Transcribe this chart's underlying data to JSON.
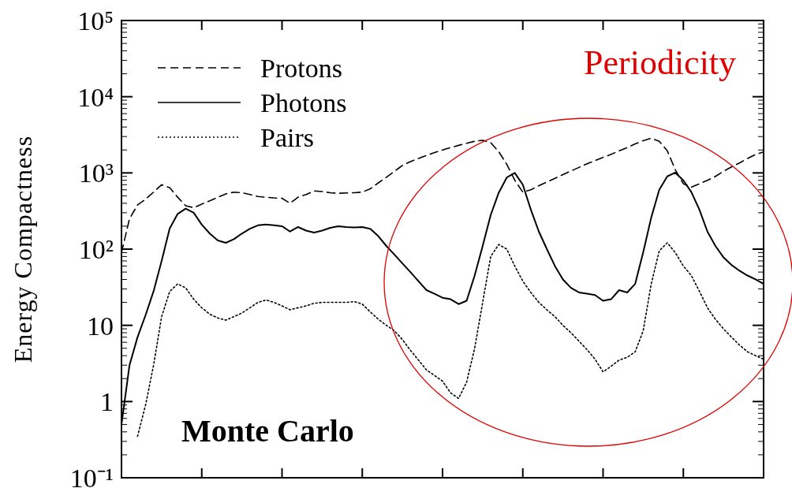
{
  "chart_data": {
    "type": "line",
    "ylabel": "Energy Compactness",
    "log": "y",
    "categories": [
      null,
      null,
      null,
      null,
      null,
      null,
      null,
      null,
      null,
      null,
      null,
      null,
      null,
      null,
      null,
      null,
      null,
      null,
      null,
      null,
      null,
      null,
      null,
      null,
      null,
      null,
      null,
      null,
      null,
      null,
      null,
      null,
      null,
      null,
      null,
      null,
      null,
      null,
      null,
      null,
      null,
      null,
      null,
      null,
      null,
      null,
      null,
      null,
      null,
      null,
      null,
      null,
      null,
      null,
      null,
      null,
      null,
      null,
      null,
      null,
      null,
      null,
      null,
      null,
      null,
      null,
      null,
      null,
      null,
      null,
      null,
      null,
      null,
      null,
      null,
      null,
      null,
      null,
      null,
      null,
      null
    ],
    "ylim": [
      0.1,
      100000
    ],
    "yticks": [
      {
        "value": 0.1,
        "label": "10⁻¹"
      },
      1,
      10,
      {
        "value": 100,
        "label": "10²"
      },
      {
        "value": 1000,
        "label": "10³"
      },
      {
        "value": 10000,
        "label": "10⁴"
      },
      {
        "value": 100000,
        "label": "10⁵"
      }
    ],
    "tick_labels": "y",
    "legend": "top left",
    "grid": false,
    "annotations": [
      "Periodicity",
      "Monte Carlo"
    ],
    "series": [
      {
        "name": "Protons",
        "color": "#000000",
        "line_style": "dashed",
        "values": [
          90,
          250,
          380,
          450,
          560,
          700,
          640,
          480,
          370,
          350,
          390,
          430,
          480,
          530,
          560,
          550,
          520,
          490,
          480,
          470,
          465,
          400,
          480,
          520,
          580,
          570,
          550,
          540,
          545,
          550,
          560,
          620,
          740,
          875,
          1050,
          1250,
          1410,
          1550,
          1700,
          1850,
          2000,
          2150,
          2300,
          2450,
          2600,
          2680,
          2500,
          1900,
          1300,
          800,
          560,
          600,
          680,
          760,
          850,
          950,
          1060,
          1180,
          1320,
          1450,
          1600,
          1750,
          1950,
          2150,
          2400,
          2650,
          2850,
          2600,
          1950,
          1100,
          720,
          650,
          720,
          800,
          900,
          1050,
          1200,
          1350,
          1550,
          1750,
          1880
        ]
      },
      {
        "name": "Photons",
        "color": "#000000",
        "line_style": "solid",
        "values": [
          0.5,
          3,
          7,
          13.6,
          28,
          70,
          186,
          290,
          340,
          300,
          210,
          160,
          130,
          121,
          135,
          160,
          185,
          205,
          210,
          205,
          200,
          170,
          195,
          175,
          165,
          175,
          190,
          200,
          195,
          192,
          195,
          185,
          148,
          110,
          85,
          65,
          50,
          38,
          29,
          26,
          23,
          22,
          19,
          21,
          45,
          110,
          280,
          550,
          870,
          1000,
          700,
          330,
          170,
          100,
          60,
          40,
          31,
          27,
          26,
          25,
          21,
          22,
          29,
          27,
          35,
          91,
          260,
          600,
          900,
          1010,
          800,
          560,
          330,
          170,
          110,
          78,
          62,
          52,
          45,
          40,
          35
        ]
      },
      {
        "name": "Pairs",
        "color": "#000000",
        "line_style": "dotted",
        "values": [
          null,
          null,
          0.35,
          0.9,
          3,
          13,
          27.7,
          35,
          31,
          22,
          17,
          14,
          12.5,
          11.7,
          13,
          14.5,
          17,
          20,
          21.5,
          20,
          18,
          16,
          17,
          18,
          19.5,
          20,
          20,
          20,
          20,
          20.5,
          19,
          15,
          12,
          10,
          8.5,
          6.5,
          4.7,
          3.5,
          2.6,
          2.2,
          1.85,
          1.3,
          1.1,
          1.8,
          5,
          20,
          80,
          115,
          100,
          60,
          38,
          27,
          20,
          16,
          13,
          10,
          8,
          6.2,
          4.8,
          3.6,
          2.45,
          2.9,
          3.5,
          3.8,
          4.5,
          8.5,
          35,
          95,
          121,
          90,
          60,
          45,
          28,
          17,
          12,
          9,
          7,
          5.5,
          4.5,
          4,
          3.6
        ]
      }
    ]
  }
}
